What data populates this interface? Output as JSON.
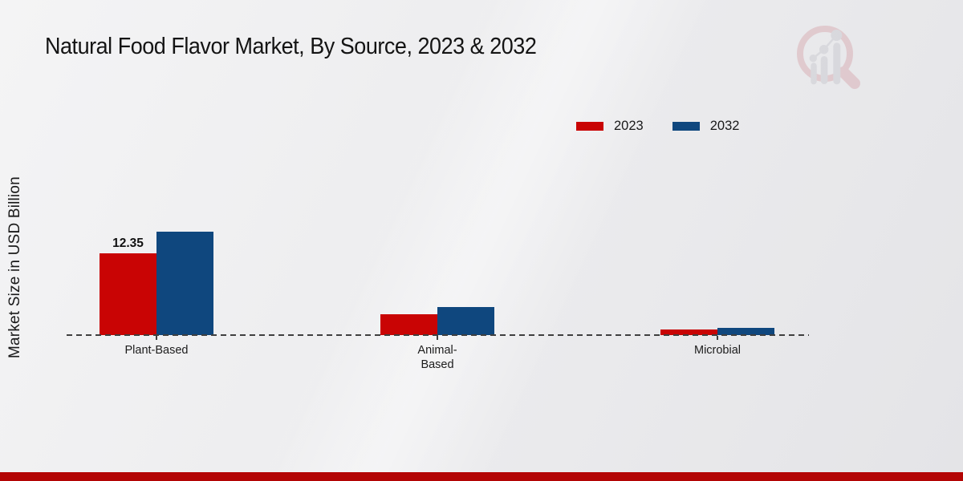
{
  "page": {
    "title": "Natural Food Flavor Market, By Source, 2023 & 2032"
  },
  "chart_data": {
    "type": "bar",
    "title": "Natural Food Flavor Market, By Source, 2023 & 2032",
    "ylabel": "Market Size in USD Billion",
    "xlabel": "",
    "categories": [
      "Plant-Based",
      "Animal-Based",
      "Microbial"
    ],
    "category_display": [
      "Plant-Based",
      "Animal-\nBased",
      "Microbial"
    ],
    "series": [
      {
        "name": "2023",
        "color": "#c90404",
        "values": [
          12.35,
          3.2,
          0.8
        ]
      },
      {
        "name": "2032",
        "color": "#0f477e",
        "values": [
          15.6,
          4.2,
          1.1
        ]
      }
    ],
    "data_labels": [
      {
        "series": "2023",
        "category": "Plant-Based",
        "text": "12.35"
      }
    ],
    "ylim": [
      0,
      16
    ],
    "grid": false,
    "legend_position": "top-right",
    "zero_line": "dashed"
  },
  "colors": {
    "series_2023": "#c90404",
    "series_2032": "#0f477e",
    "footer_bar": "#b30505",
    "axis_line": "#3f3f3f",
    "text": "#1a1a1a",
    "watermark_pink": "#cf8d96",
    "watermark_gray": "#b9bac2"
  }
}
